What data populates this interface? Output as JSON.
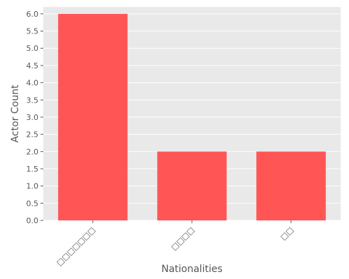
{
  "chart_data": {
    "type": "bar",
    "title": "",
    "xlabel": "Nationalities",
    "ylabel": "Actor Count",
    "categories": [
      "□□□□□□□",
      "□□□□",
      "□□"
    ],
    "values": [
      6.0,
      2.0,
      2.0
    ],
    "ylim": [
      0,
      6.2
    ],
    "yticks": [
      "0.0",
      "0.5",
      "1.0",
      "1.5",
      "2.0",
      "2.5",
      "3.0",
      "3.5",
      "4.0",
      "4.5",
      "5.0",
      "5.5",
      "6.0"
    ],
    "grid": true,
    "bar_color": "#ff5555",
    "background_color": "#e9e9e9",
    "grid_color": "#ffffff",
    "text_color": "#555555"
  }
}
